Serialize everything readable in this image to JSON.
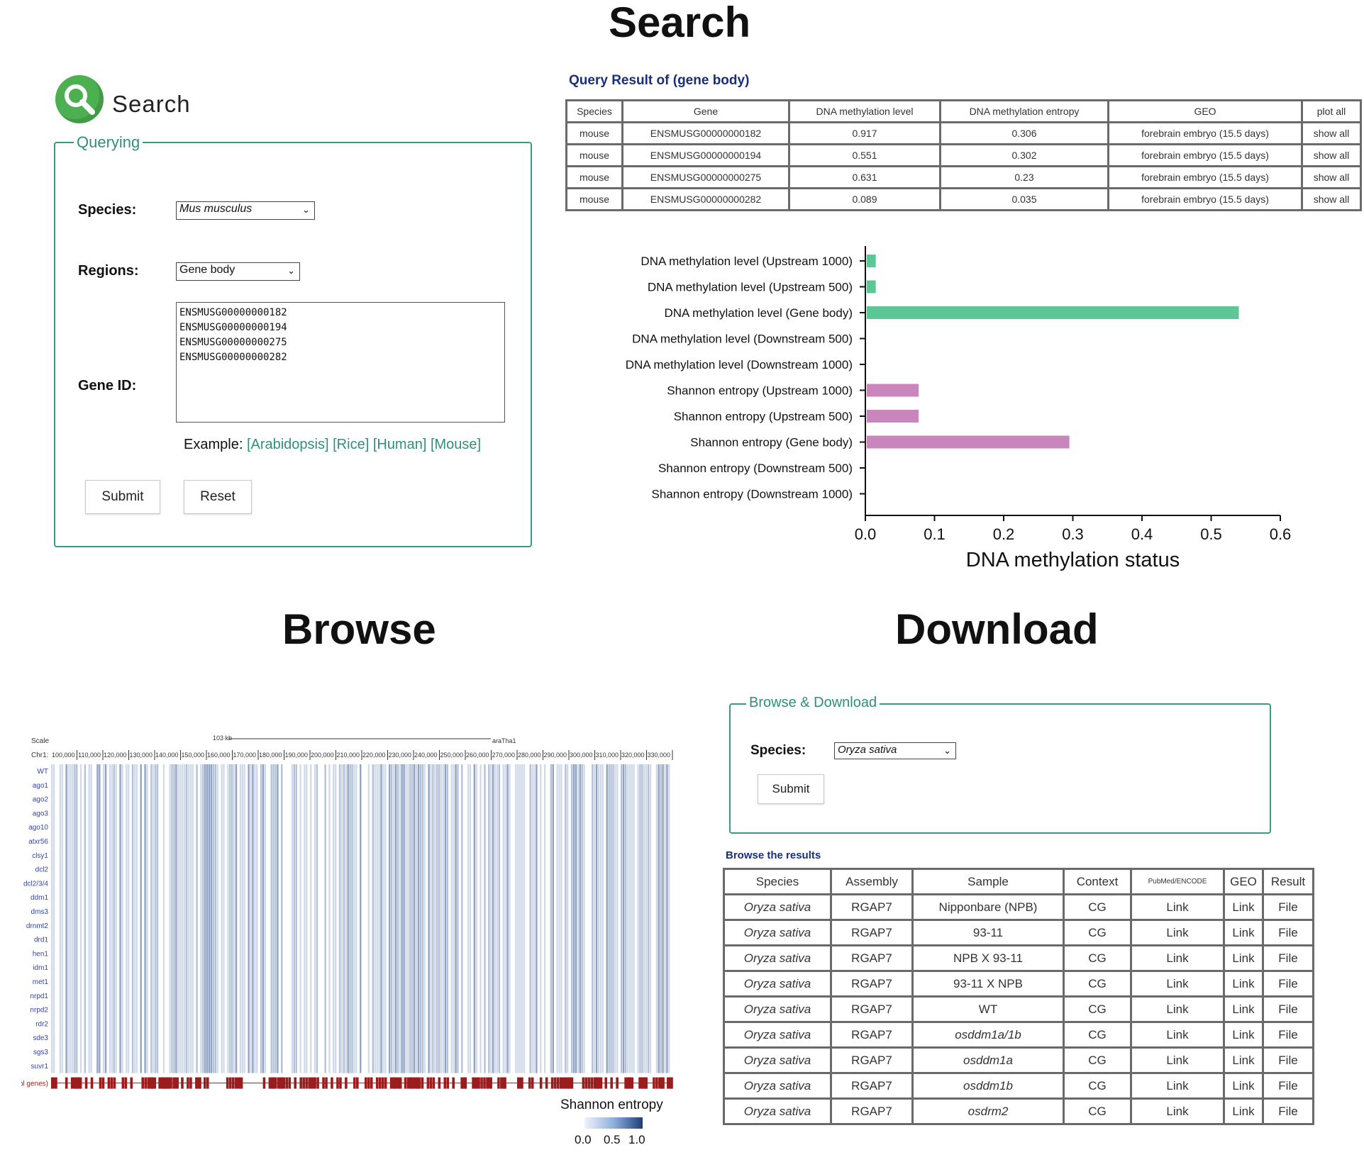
{
  "sections": {
    "search": "Search",
    "browse": "Browse",
    "download": "Download"
  },
  "search_form": {
    "header": "Search",
    "legend": "Querying",
    "species_label": "Species:",
    "species_value": "Mus musculus",
    "regions_label": "Regions:",
    "regions_value": "Gene body",
    "geneid_label": "Gene ID:",
    "gene_ids": [
      "ENSMUSG00000000182",
      "ENSMUSG00000000194",
      "ENSMUSG00000000275",
      "ENSMUSG00000000282"
    ],
    "example_label": "Example:",
    "examples": [
      "[Arabidopsis]",
      "[Rice]",
      "[Human]",
      "[Mouse]"
    ],
    "submit": "Submit",
    "reset": "Reset"
  },
  "query_result": {
    "title": "Query Result of (gene body)",
    "headers": [
      "Species",
      "Gene",
      "DNA methylation level",
      "DNA methylation entropy",
      "GEO",
      "plot all"
    ],
    "rows": [
      [
        "mouse",
        "ENSMUSG00000000182",
        "0.917",
        "0.306",
        "forebrain embryo (15.5 days)",
        "show all"
      ],
      [
        "mouse",
        "ENSMUSG00000000194",
        "0.551",
        "0.302",
        "forebrain embryo (15.5 days)",
        "show all"
      ],
      [
        "mouse",
        "ENSMUSG00000000275",
        "0.631",
        "0.23",
        "forebrain embryo (15.5 days)",
        "show all"
      ],
      [
        "mouse",
        "ENSMUSG00000000282",
        "0.089",
        "0.035",
        "forebrain embryo (15.5 days)",
        "show all"
      ]
    ]
  },
  "chart_data": {
    "type": "bar",
    "orientation": "horizontal",
    "categories": [
      "DNA methylation level (Upstream 1000)",
      "DNA methylation level (Upstream 500)",
      "DNA methylation level (Gene body)",
      "DNA methylation level (Downstream 500)",
      "DNA methylation level (Downstream 1000)",
      "Shannon entropy (Upstream 1000)",
      "Shannon entropy (Upstream 500)",
      "Shannon entropy (Gene body)",
      "Shannon entropy (Downstream 500)",
      "Shannon entropy (Downstream 1000)"
    ],
    "values": [
      0.015,
      0.015,
      0.54,
      0,
      0,
      0.077,
      0.077,
      0.295,
      0,
      0
    ],
    "colors": [
      "#5cc694",
      "#5cc694",
      "#5cc694",
      "#5cc694",
      "#5cc694",
      "#c886bd",
      "#c886bd",
      "#c886bd",
      "#c886bd",
      "#c886bd"
    ],
    "xlabel": "DNA methylation status",
    "xlim": [
      0,
      0.6
    ],
    "xticks": [
      "0.0",
      "0.1",
      "0.2",
      "0.3",
      "0.4",
      "0.5",
      "0.6"
    ],
    "grid": false
  },
  "browser": {
    "scale_label": "Scale",
    "chr_label": "Chr1:",
    "scale_text": "103 kb",
    "assembly": "araTha1",
    "positions": [
      "100,000",
      "110,000",
      "120,000",
      "130,000",
      "140,000",
      "150,000",
      "160,000",
      "170,000",
      "180,000",
      "190,000",
      "200,000",
      "210,000",
      "220,000",
      "230,000",
      "240,000",
      "250,000",
      "260,000",
      "270,000",
      "280,000",
      "290,000",
      "300,000",
      "310,000",
      "320,000",
      "330,000"
    ],
    "tracks": [
      "WT",
      "ago1",
      "ago2",
      "ago3",
      "ago10",
      "atxr56",
      "clsy1",
      "dcl2",
      "dcl2/3/4",
      "ddm1",
      "dms3",
      "drnmt2",
      "drd1",
      "hen1",
      "idm1",
      "met1",
      "nrpd1",
      "nrpd2",
      "rdr2",
      "sde3",
      "sgs3",
      "suvr1"
    ],
    "gene_track": "(embl genes)",
    "legend_title": "Shannon entropy",
    "legend_ticks": [
      "0.0",
      "0.5",
      "1.0"
    ],
    "color_low": "#eef3fb",
    "color_high": "#1c3f7a"
  },
  "download": {
    "legend": "Browse & Download",
    "species_label": "Species:",
    "species_value": "Oryza sativa",
    "submit": "Submit",
    "results_title": "Browse the results",
    "headers": [
      "Species",
      "Assembly",
      "Sample",
      "Context",
      "PubMed/ENCODE",
      "GEO",
      "Result"
    ],
    "rows": [
      [
        "Oryza sativa",
        "RGAP7",
        "Nipponbare (NPB)",
        "CG",
        "Link",
        "Link",
        "File"
      ],
      [
        "Oryza sativa",
        "RGAP7",
        "93-11",
        "CG",
        "Link",
        "Link",
        "File"
      ],
      [
        "Oryza sativa",
        "RGAP7",
        "NPB X 93-11",
        "CG",
        "Link",
        "Link",
        "File"
      ],
      [
        "Oryza sativa",
        "RGAP7",
        "93-11 X NPB",
        "CG",
        "Link",
        "Link",
        "File"
      ],
      [
        "Oryza sativa",
        "RGAP7",
        "WT",
        "CG",
        "Link",
        "Link",
        "File"
      ],
      [
        "Oryza sativa",
        "RGAP7",
        "osddm1a/1b",
        "CG",
        "Link",
        "Link",
        "File"
      ],
      [
        "Oryza sativa",
        "RGAP7",
        "osddm1a",
        "CG",
        "Link",
        "Link",
        "File"
      ],
      [
        "Oryza sativa",
        "RGAP7",
        "osddm1b",
        "CG",
        "Link",
        "Link",
        "File"
      ],
      [
        "Oryza sativa",
        "RGAP7",
        "osdrm2",
        "CG",
        "Link",
        "Link",
        "File"
      ]
    ]
  }
}
